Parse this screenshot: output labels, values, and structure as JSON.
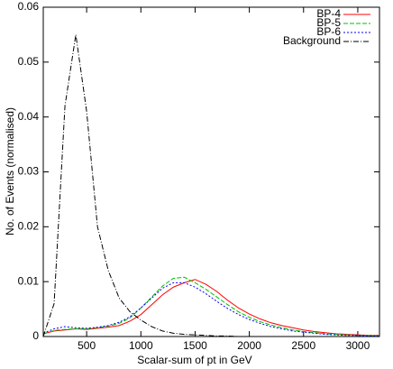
{
  "chart_data": {
    "type": "line",
    "xlabel": "Scalar-sum of pt in GeV",
    "ylabel": "No. of Events (normalised)",
    "x": [
      100,
      200,
      300,
      400,
      500,
      600,
      700,
      800,
      900,
      1000,
      1100,
      1200,
      1300,
      1400,
      1500,
      1600,
      1700,
      1800,
      1900,
      2000,
      2100,
      2200,
      2300,
      2400,
      2500,
      2600,
      2700,
      2800,
      2900,
      3000,
      3100,
      3200
    ],
    "series": [
      {
        "name": "BP-4",
        "color": "#ff0000",
        "dash": "none",
        "values": [
          0.0005,
          0.001,
          0.0012,
          0.0014,
          0.0013,
          0.0015,
          0.0017,
          0.002,
          0.0028,
          0.004,
          0.0058,
          0.0076,
          0.009,
          0.0098,
          0.0104,
          0.0095,
          0.0082,
          0.0066,
          0.0052,
          0.0041,
          0.0032,
          0.0025,
          0.002,
          0.0016,
          0.0012,
          0.0009,
          0.0007,
          0.0005,
          0.0004,
          0.0003,
          0.0002,
          0.0002
        ]
      },
      {
        "name": "BP-5",
        "color": "#00c000",
        "dash": "5,2",
        "values": [
          0.0005,
          0.0011,
          0.0013,
          0.0014,
          0.0014,
          0.0016,
          0.0019,
          0.0024,
          0.0034,
          0.0052,
          0.0072,
          0.0092,
          0.0106,
          0.0108,
          0.0098,
          0.0086,
          0.0072,
          0.0058,
          0.0045,
          0.0035,
          0.0027,
          0.0021,
          0.0016,
          0.0012,
          0.0009,
          0.0007,
          0.0005,
          0.0004,
          0.0003,
          0.0002,
          0.0002,
          0.0001
        ]
      },
      {
        "name": "BP-6",
        "color": "#0000ff",
        "dash": "2,2",
        "values": [
          0.0006,
          0.0014,
          0.0018,
          0.0016,
          0.0015,
          0.0017,
          0.002,
          0.0026,
          0.0036,
          0.0052,
          0.007,
          0.0088,
          0.0098,
          0.0098,
          0.009,
          0.0078,
          0.0064,
          0.0051,
          0.004,
          0.0031,
          0.0024,
          0.0018,
          0.0014,
          0.001,
          0.0008,
          0.0006,
          0.0004,
          0.0003,
          0.0002,
          0.0002,
          0.0001,
          0.0001
        ]
      },
      {
        "name": "Background",
        "color": "#000000",
        "dash": "6,2,1,2",
        "values": [
          0,
          0.006,
          0.042,
          0.055,
          0.041,
          0.02,
          0.012,
          0.007,
          0.0045,
          0.003,
          0.0018,
          0.001,
          0.0006,
          0.0004,
          0.0003,
          0.0002,
          0.0001,
          0.0001,
          0,
          0,
          0,
          0,
          0,
          0,
          0,
          0,
          0,
          0,
          0,
          0,
          0,
          0
        ]
      }
    ],
    "xlim": [
      100,
      3200
    ],
    "xticks": [
      500,
      1000,
      1500,
      2000,
      2500,
      3000
    ],
    "ylim": [
      0,
      0.06
    ],
    "yticks": [
      0,
      0.01,
      0.02,
      0.03,
      0.04,
      0.05,
      0.06
    ],
    "legend": "top-right",
    "grid": false
  }
}
